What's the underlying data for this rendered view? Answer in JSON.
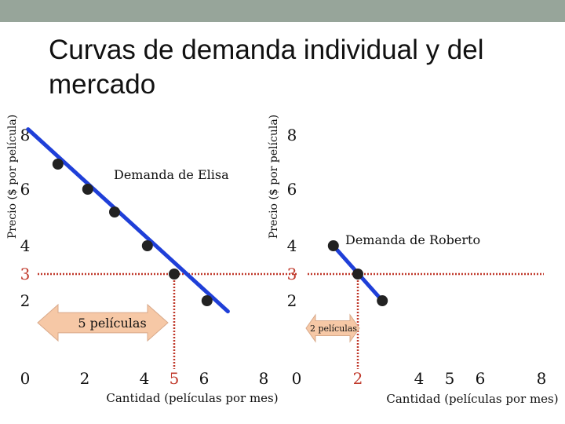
{
  "title": "Curvas de demanda individual y del mercado",
  "chart_data": [
    {
      "type": "line",
      "name": "elisa",
      "ylabel": "Precio ($ por película)",
      "xlabel": "Cantidad (películas por mes)",
      "x_ticks": [
        "0",
        "2",
        "4",
        "5",
        "6",
        "8"
      ],
      "y_ticks": [
        "2",
        "3",
        "4",
        "6",
        "8"
      ],
      "curve_label": "Demanda de Elisa",
      "arrow_label": "5 películas",
      "highlight": {
        "x": 5,
        "y": 3
      },
      "series": [
        {
          "name": "Demanda de Elisa",
          "color": "#1f3fd8",
          "points": [
            [
              1.1,
              7
            ],
            [
              2.1,
              6
            ],
            [
              3.0,
              5
            ],
            [
              4.1,
              4
            ],
            [
              5.0,
              3
            ],
            [
              6.1,
              2
            ]
          ]
        }
      ],
      "line_extent": [
        [
          0.1,
          8.2
        ],
        [
          6.8,
          1.6
        ]
      ],
      "xlim": [
        0,
        8.5
      ],
      "ylim": [
        0,
        9
      ]
    },
    {
      "type": "line",
      "name": "roberto",
      "ylabel": "Precio ($ por película)",
      "xlabel": "Cantidad (películas por mes)",
      "x_ticks": [
        "0",
        "2",
        "4",
        "5",
        "6",
        "8"
      ],
      "y_ticks": [
        "2",
        "3",
        "4",
        "6",
        "8"
      ],
      "curve_label": "Demanda de Roberto",
      "arrow_label": "2 películas",
      "highlight": {
        "x": 2,
        "y": 3
      },
      "series": [
        {
          "name": "Demanda de Roberto",
          "color": "#1f3fd8",
          "points": [
            [
              1.2,
              4
            ],
            [
              2.0,
              3
            ],
            [
              2.8,
              2
            ]
          ]
        }
      ],
      "line_extent": [
        [
          1.2,
          4
        ],
        [
          2.8,
          2
        ]
      ],
      "xlim": [
        0,
        8.5
      ],
      "ylim": [
        0,
        9
      ]
    }
  ],
  "guides": {
    "dotted_color": "#c0392b",
    "price_level": 3,
    "arrow_fill": "#f6c8a6",
    "arrow_stroke": "#d8a98a"
  }
}
